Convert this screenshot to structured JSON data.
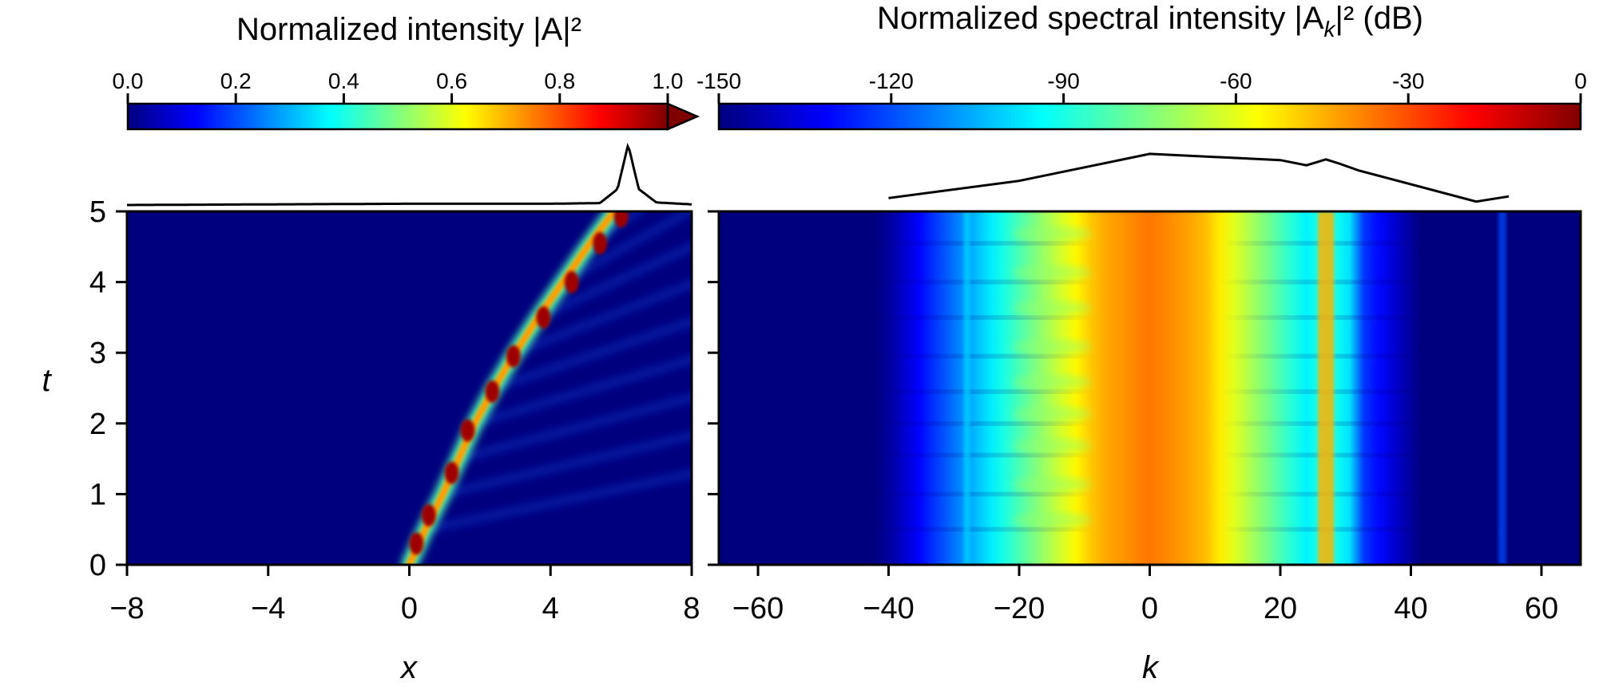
{
  "colors": {
    "jet": [
      "#00007f",
      "#0000ff",
      "#007fff",
      "#00ffff",
      "#7fff7f",
      "#ffff00",
      "#ff7f00",
      "#ff0000",
      "#7f0000"
    ],
    "background": "#00007f",
    "frame": "#000000"
  },
  "chart_data": [
    {
      "type": "heatmap",
      "name": "intensity-map",
      "title": "Normalized intensity |A|²",
      "colorbar": {
        "ticks": [
          0.0,
          0.2,
          0.4,
          0.6,
          0.8,
          1.0
        ],
        "tick_labels": [
          "0.0",
          "0.2",
          "0.4",
          "0.6",
          "0.8",
          "1.0"
        ],
        "range": [
          0.0,
          1.0
        ],
        "extend": "max",
        "placement": "top"
      },
      "xlabel": "x",
      "ylabel": "t",
      "xlim": [
        -8,
        8
      ],
      "ylim": [
        0,
        5
      ],
      "xticks": [
        -8,
        -4,
        0,
        4,
        8
      ],
      "xtick_labels": [
        "−8",
        "−4",
        "0",
        "4",
        "8"
      ],
      "yticks": [
        0,
        1,
        2,
        3,
        4,
        5
      ],
      "ytick_labels": [
        "0",
        "1",
        "2",
        "3",
        "4",
        "5"
      ],
      "trajectory": {
        "t": [
          0,
          0.5,
          1.0,
          1.5,
          2.0,
          2.5,
          3.0,
          3.5,
          4.0,
          4.5,
          5.0
        ],
        "x": [
          0.0,
          0.45,
          0.95,
          1.4,
          1.85,
          2.4,
          3.0,
          3.65,
          4.35,
          5.05,
          5.8
        ]
      },
      "peaks": [
        {
          "t": 0.3,
          "x": 0.2
        },
        {
          "t": 0.7,
          "x": 0.55
        },
        {
          "t": 1.3,
          "x": 1.2
        },
        {
          "t": 1.9,
          "x": 1.65
        },
        {
          "t": 2.45,
          "x": 2.35
        },
        {
          "t": 2.95,
          "x": 2.95
        },
        {
          "t": 3.5,
          "x": 3.8
        },
        {
          "t": 4.0,
          "x": 4.6
        },
        {
          "t": 4.55,
          "x": 5.4
        },
        {
          "t": 4.93,
          "x": 6.0
        }
      ],
      "profile_at_t5": {
        "x": [
          -8,
          -4,
          0,
          4,
          5.4,
          5.9,
          6.2,
          6.5,
          7.0,
          8
        ],
        "value": [
          0.0,
          0.01,
          0.02,
          0.02,
          0.03,
          0.25,
          0.95,
          0.25,
          0.04,
          0.01
        ]
      }
    },
    {
      "type": "heatmap",
      "name": "spectrum-map",
      "title": "Normalized spectral intensity |A",
      "title_subscript": "k",
      "title_tail": "|² (dB)",
      "colorbar": {
        "ticks": [
          -150,
          -120,
          -90,
          -60,
          -30,
          0
        ],
        "tick_labels": [
          "-150",
          "-120",
          "-90",
          "-60",
          "-30",
          "0"
        ],
        "range": [
          -150,
          0
        ],
        "placement": "top"
      },
      "xlabel": "k",
      "xlim": [
        -66,
        66
      ],
      "ylim": [
        0,
        5
      ],
      "xticks": [
        -60,
        -40,
        -20,
        0,
        20,
        40,
        60
      ],
      "xtick_labels": [
        "−60",
        "−40",
        "−20",
        "0",
        "20",
        "40",
        "60"
      ],
      "yticks": [
        0,
        1,
        2,
        3,
        4,
        5
      ],
      "central_band": {
        "k_center": 0,
        "half_width": 8,
        "value_db": -35
      },
      "resonant_line": {
        "k": 27,
        "value_db": -45
      },
      "secondary_line": {
        "k": -28,
        "value_db": -100
      },
      "far_line": {
        "k": 54,
        "value_db": -120
      },
      "modulation_t": [
        0.5,
        1.0,
        1.55,
        2.0,
        2.45,
        2.95,
        3.5,
        4.0,
        4.55
      ],
      "spectrum_at_t5": {
        "k": [
          -40,
          -20,
          0,
          20,
          24,
          27,
          29,
          32,
          50,
          55
        ],
        "value_db": [
          -130,
          -80,
          -2,
          -20,
          -35,
          -18,
          -30,
          -50,
          -140,
          -125
        ]
      }
    }
  ]
}
